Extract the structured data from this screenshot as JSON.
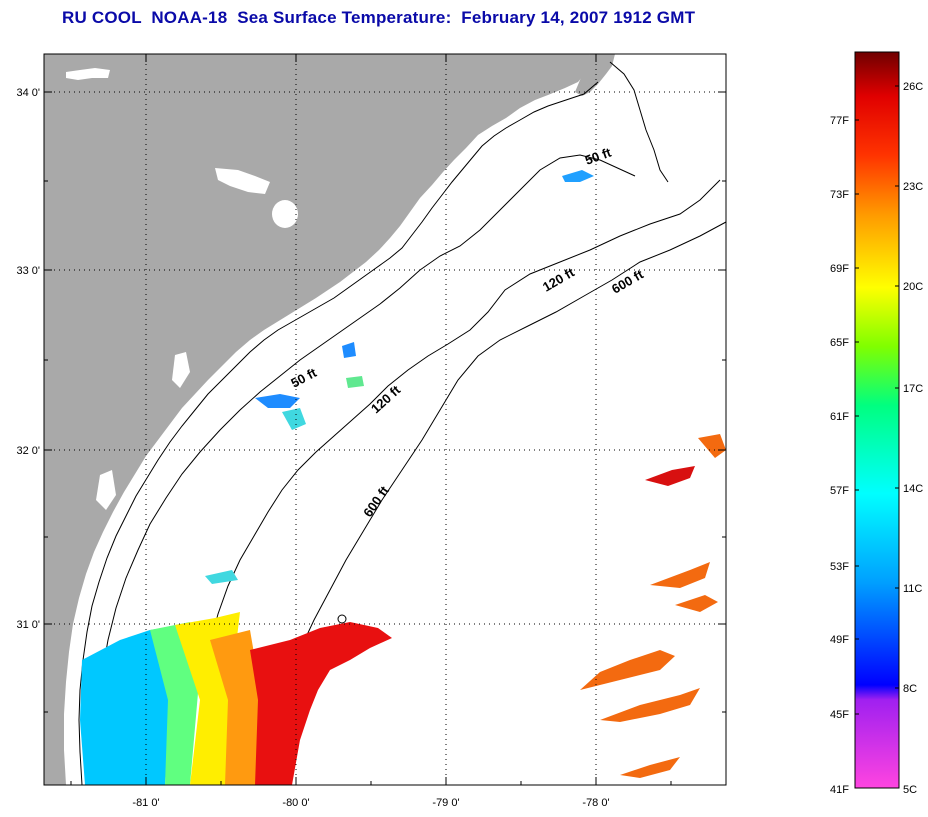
{
  "header": {
    "title": "RU COOL  NOAA-18  Sea Surface Temperature:  February 14, 2007 1912 GMT"
  },
  "map": {
    "latitude_labels": [
      "34 0'",
      "33 0'",
      "32 0'",
      "31 0'"
    ],
    "longitude_labels": [
      "-81 0'",
      "-80 0'",
      "-79 0'",
      "-78 0'"
    ],
    "isobath_labels": {
      "north_50": "50 ft",
      "north_120": "120 ft",
      "north_600": "600 ft",
      "south_50": "50 ft",
      "south_120": "120 ft",
      "south_600": "600 ft"
    },
    "colors": {
      "land": "#a9a9a9",
      "ocean_no_data": "#ffffff",
      "coastline": "#000000",
      "grid": "#000000"
    }
  },
  "colorbar": {
    "fahrenheit_labels": [
      "77F",
      "73F",
      "69F",
      "65F",
      "61F",
      "57F",
      "53F",
      "49F",
      "45F",
      "41F"
    ],
    "celsius_labels": [
      "26C",
      "23C",
      "20C",
      "17C",
      "14C",
      "11C",
      "8C",
      "5C"
    ],
    "range_celsius": [
      5,
      27
    ],
    "stops": [
      "#ff44e0",
      "#a020f0",
      "#0000ff",
      "#00a0ff",
      "#00ffff",
      "#00ff80",
      "#80ff00",
      "#ffff00",
      "#ff9900",
      "#ff3300",
      "#e00000",
      "#700000"
    ]
  }
}
